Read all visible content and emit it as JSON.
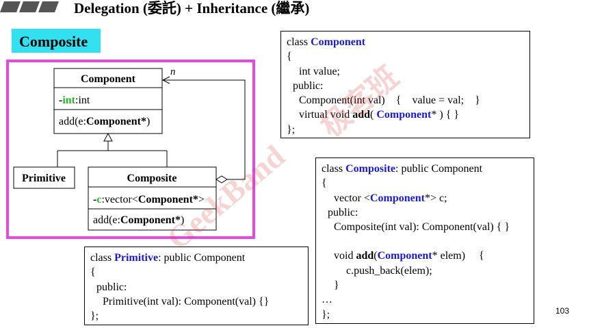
{
  "header": {
    "title": "Delegation (委託) + Inheritance (繼承)"
  },
  "section_label": "Composite",
  "diagram": {
    "component": {
      "name": "Component",
      "attr": [
        "-",
        "int",
        ":int"
      ],
      "op": [
        "add(e:",
        "Component*",
        ")"
      ]
    },
    "primitive": {
      "name": "Primitive"
    },
    "composite": {
      "name": "Composite",
      "attr": [
        "-",
        "c",
        ":vector<",
        "Component*",
        ">"
      ],
      "op": [
        "add(e:",
        "Component*",
        ")"
      ]
    },
    "multiplicity": "n"
  },
  "code": {
    "component": {
      "lines": [
        [
          "class ",
          "Component"
        ],
        [
          "{"
        ],
        [
          "int value;"
        ],
        [
          "public:"
        ],
        [
          "Component(int val)    {    value = val;    }"
        ],
        [
          "virtual void ",
          "add",
          "( ",
          "Component",
          "* ) { }"
        ],
        [
          "};"
        ]
      ]
    },
    "composite": {
      "lines": [
        [
          "class ",
          "Composite",
          ": public Component"
        ],
        [
          "{"
        ],
        [
          "vector <",
          "Component",
          "*> c;"
        ],
        [
          "public:"
        ],
        [
          "Composite(int val): Component(val) { }"
        ],
        [
          "void ",
          "add",
          "(",
          "Component",
          "* elem)     {"
        ],
        [
          "c.push_back(elem);"
        ],
        [
          "}"
        ],
        [
          "…"
        ],
        [
          "};"
        ]
      ]
    },
    "primitive": {
      "lines": [
        [
          "class ",
          "Primitive",
          ": public Component"
        ],
        [
          "{"
        ],
        [
          "public:"
        ],
        [
          "Primitive(int val): Component(val) {}"
        ],
        [
          "};"
        ]
      ]
    }
  },
  "watermark": [
    "GeekBand",
    "极客班"
  ],
  "page_number": "103"
}
